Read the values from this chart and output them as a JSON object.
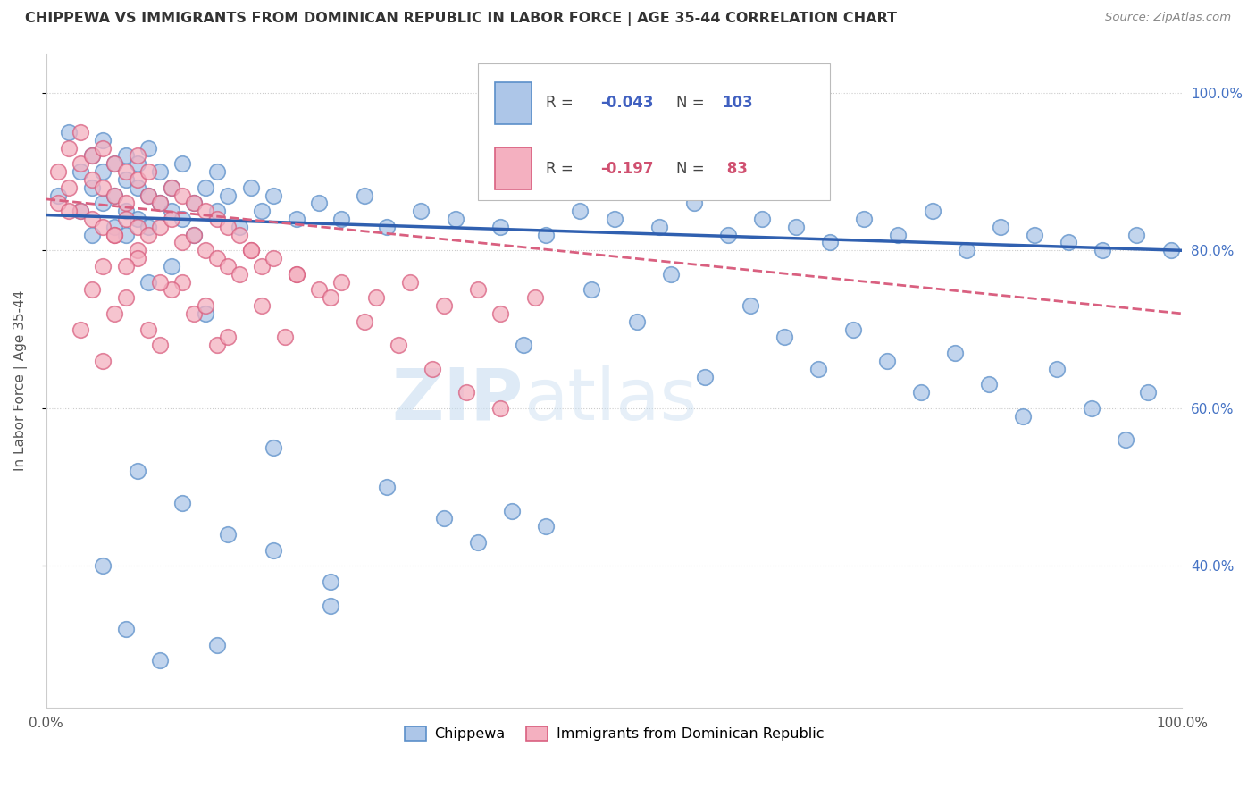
{
  "title": "CHIPPEWA VS IMMIGRANTS FROM DOMINICAN REPUBLIC IN LABOR FORCE | AGE 35-44 CORRELATION CHART",
  "source": "Source: ZipAtlas.com",
  "ylabel": "In Labor Force | Age 35-44",
  "xlim": [
    0.0,
    1.0
  ],
  "ylim": [
    0.22,
    1.05
  ],
  "yticks": [
    0.4,
    0.6,
    0.8,
    1.0
  ],
  "ytick_labels": [
    "40.0%",
    "60.0%",
    "80.0%",
    "100.0%"
  ],
  "color_blue": "#adc6e8",
  "color_pink": "#f4b0c0",
  "color_blue_edge": "#5b8fc9",
  "color_pink_edge": "#d96080",
  "color_blue_line": "#3060b0",
  "color_pink_line": "#d96080",
  "color_title": "#333333",
  "color_source": "#888888",
  "color_grid": "#cccccc",
  "color_rn_blue": "#4060c0",
  "color_rn_pink": "#d05070",
  "watermark_text": "ZIPatlas",
  "watermark_color": "#c8d8e8",
  "figsize": [
    14.06,
    8.92
  ],
  "dpi": 100,
  "blue_x": [
    0.01,
    0.02,
    0.03,
    0.03,
    0.04,
    0.04,
    0.04,
    0.05,
    0.05,
    0.05,
    0.06,
    0.06,
    0.06,
    0.07,
    0.07,
    0.07,
    0.07,
    0.08,
    0.08,
    0.08,
    0.09,
    0.09,
    0.09,
    0.1,
    0.1,
    0.11,
    0.11,
    0.12,
    0.12,
    0.13,
    0.13,
    0.14,
    0.15,
    0.15,
    0.16,
    0.17,
    0.18,
    0.19,
    0.2,
    0.22,
    0.24,
    0.26,
    0.28,
    0.3,
    0.33,
    0.36,
    0.4,
    0.44,
    0.47,
    0.5,
    0.54,
    0.57,
    0.6,
    0.63,
    0.66,
    0.69,
    0.72,
    0.75,
    0.78,
    0.81,
    0.84,
    0.87,
    0.9,
    0.93,
    0.96,
    0.99,
    0.42,
    0.48,
    0.52,
    0.55,
    0.58,
    0.62,
    0.65,
    0.68,
    0.71,
    0.74,
    0.77,
    0.8,
    0.83,
    0.86,
    0.89,
    0.92,
    0.95,
    0.97,
    0.05,
    0.08,
    0.12,
    0.16,
    0.2,
    0.25,
    0.3,
    0.35,
    0.38,
    0.41,
    0.44,
    0.15,
    0.2,
    0.25,
    0.1,
    0.07,
    0.09,
    0.11,
    0.14
  ],
  "blue_y": [
    0.87,
    0.95,
    0.9,
    0.85,
    0.92,
    0.88,
    0.82,
    0.9,
    0.86,
    0.94,
    0.87,
    0.83,
    0.91,
    0.89,
    0.85,
    0.92,
    0.82,
    0.88,
    0.84,
    0.91,
    0.87,
    0.83,
    0.93,
    0.86,
    0.9,
    0.85,
    0.88,
    0.84,
    0.91,
    0.86,
    0.82,
    0.88,
    0.85,
    0.9,
    0.87,
    0.83,
    0.88,
    0.85,
    0.87,
    0.84,
    0.86,
    0.84,
    0.87,
    0.83,
    0.85,
    0.84,
    0.83,
    0.82,
    0.85,
    0.84,
    0.83,
    0.86,
    0.82,
    0.84,
    0.83,
    0.81,
    0.84,
    0.82,
    0.85,
    0.8,
    0.83,
    0.82,
    0.81,
    0.8,
    0.82,
    0.8,
    0.68,
    0.75,
    0.71,
    0.77,
    0.64,
    0.73,
    0.69,
    0.65,
    0.7,
    0.66,
    0.62,
    0.67,
    0.63,
    0.59,
    0.65,
    0.6,
    0.56,
    0.62,
    0.4,
    0.52,
    0.48,
    0.44,
    0.42,
    0.38,
    0.5,
    0.46,
    0.43,
    0.47,
    0.45,
    0.3,
    0.55,
    0.35,
    0.28,
    0.32,
    0.76,
    0.78,
    0.72
  ],
  "pink_x": [
    0.01,
    0.01,
    0.02,
    0.02,
    0.03,
    0.03,
    0.03,
    0.04,
    0.04,
    0.04,
    0.05,
    0.05,
    0.05,
    0.06,
    0.06,
    0.06,
    0.07,
    0.07,
    0.07,
    0.08,
    0.08,
    0.08,
    0.09,
    0.09,
    0.09,
    0.1,
    0.1,
    0.11,
    0.11,
    0.12,
    0.12,
    0.13,
    0.13,
    0.14,
    0.14,
    0.15,
    0.15,
    0.16,
    0.16,
    0.17,
    0.18,
    0.19,
    0.2,
    0.22,
    0.24,
    0.26,
    0.29,
    0.32,
    0.35,
    0.38,
    0.4,
    0.43,
    0.12,
    0.08,
    0.05,
    0.07,
    0.09,
    0.11,
    0.13,
    0.15,
    0.17,
    0.19,
    0.21,
    0.06,
    0.04,
    0.03,
    0.08,
    0.1,
    0.14,
    0.16,
    0.18,
    0.22,
    0.25,
    0.28,
    0.31,
    0.34,
    0.37,
    0.4,
    0.02,
    0.06,
    0.1,
    0.05,
    0.07
  ],
  "pink_y": [
    0.9,
    0.86,
    0.93,
    0.88,
    0.91,
    0.85,
    0.95,
    0.89,
    0.84,
    0.92,
    0.88,
    0.83,
    0.93,
    0.87,
    0.82,
    0.91,
    0.86,
    0.9,
    0.84,
    0.89,
    0.83,
    0.92,
    0.87,
    0.82,
    0.9,
    0.86,
    0.83,
    0.88,
    0.84,
    0.87,
    0.81,
    0.86,
    0.82,
    0.85,
    0.8,
    0.84,
    0.79,
    0.83,
    0.78,
    0.82,
    0.8,
    0.78,
    0.79,
    0.77,
    0.75,
    0.76,
    0.74,
    0.76,
    0.73,
    0.75,
    0.72,
    0.74,
    0.76,
    0.8,
    0.78,
    0.74,
    0.7,
    0.75,
    0.72,
    0.68,
    0.77,
    0.73,
    0.69,
    0.82,
    0.75,
    0.7,
    0.79,
    0.76,
    0.73,
    0.69,
    0.8,
    0.77,
    0.74,
    0.71,
    0.68,
    0.65,
    0.62,
    0.6,
    0.85,
    0.72,
    0.68,
    0.66,
    0.78
  ]
}
